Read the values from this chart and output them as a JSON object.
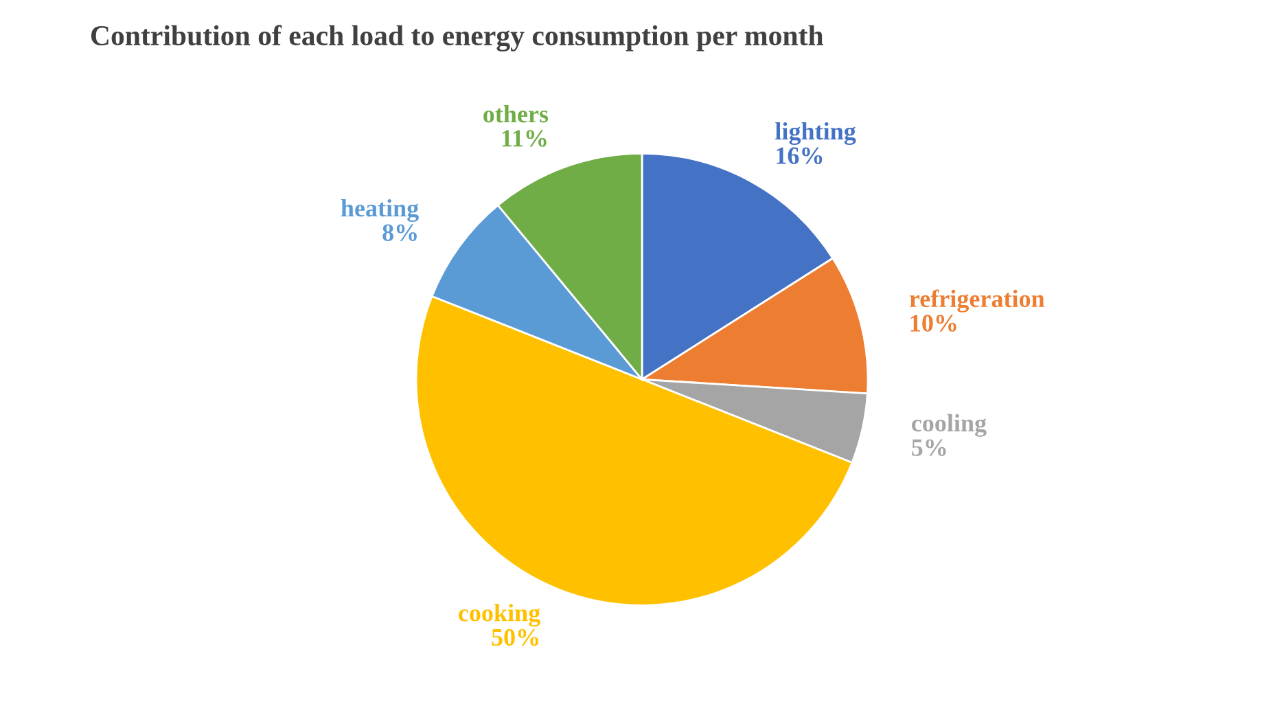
{
  "chart_data": {
    "type": "pie",
    "title": "Contribution of each load to energy consumption per month",
    "categories": [
      "lighting",
      "refrigeration",
      "cooling",
      "cooking",
      "heating",
      "others"
    ],
    "values": [
      16,
      10,
      5,
      50,
      8,
      11
    ],
    "colors": [
      "#4472c4",
      "#ed7d31",
      "#a5a5a5",
      "#ffc000",
      "#5b9bd5",
      "#70ad47"
    ],
    "value_labels": [
      "16%",
      "10%",
      "5%",
      "50%",
      "8%",
      "11%"
    ],
    "legend": false
  }
}
